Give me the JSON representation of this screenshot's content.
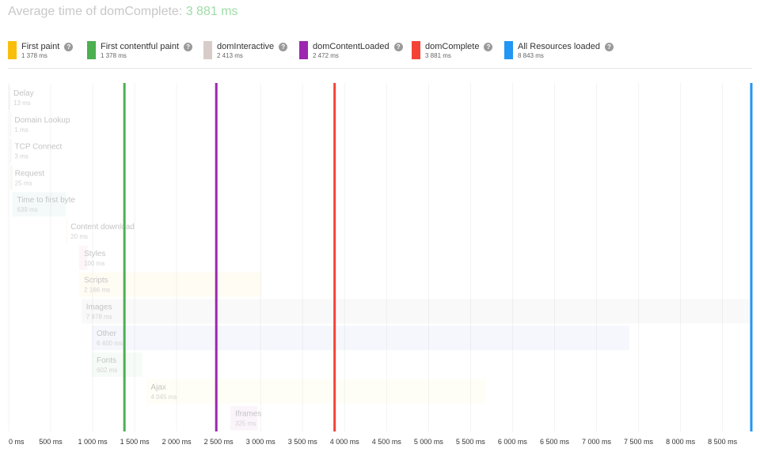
{
  "title": {
    "prefix": "Average time of domComplete: ",
    "value": "3 881 ms"
  },
  "legend": [
    {
      "name": "First paint",
      "value": "1 378 ms",
      "color": "#f9be0b",
      "ms": 1378
    },
    {
      "name": "First contentful paint",
      "value": "1 378 ms",
      "color": "#4caf50",
      "ms": 1378
    },
    {
      "name": "domInteractive",
      "value": "2 413 ms",
      "color": "#d7ccc8",
      "ms": 2413
    },
    {
      "name": "domContentLoaded",
      "value": "2 472 ms",
      "color": "#9c27b0",
      "ms": 2472
    },
    {
      "name": "domComplete",
      "value": "3 881 ms",
      "color": "#f44336",
      "ms": 3881
    },
    {
      "name": "All Resources loaded",
      "value": "8 843 ms",
      "color": "#2196f3",
      "ms": 8843
    }
  ],
  "chart_data": {
    "type": "bar",
    "orientation": "horizontal-waterfall",
    "x_unit": "ms",
    "xlim": [
      0,
      8843
    ],
    "x_ticks": [
      0,
      500,
      1000,
      1500,
      2000,
      2500,
      3000,
      3500,
      4000,
      4500,
      5000,
      5500,
      6000,
      6500,
      7000,
      7500,
      8000,
      8500
    ],
    "x_tick_labels": [
      "0 ms",
      "500 ms",
      "1 000 ms",
      "1 500 ms",
      "2 000 ms",
      "2 500 ms",
      "3 000 ms",
      "3 500 ms",
      "4 000 ms",
      "4 500 ms",
      "5 000 ms",
      "5 500 ms",
      "6 000 ms",
      "6 500 ms",
      "7 000 ms",
      "7 500 ms",
      "8 000 ms",
      "8 500 ms"
    ],
    "rows": [
      {
        "name": "Delay",
        "start": 0,
        "duration": 13,
        "label": "13 ms",
        "color": "#9e9e9e"
      },
      {
        "name": "Domain Lookup",
        "start": 13,
        "duration": 1,
        "label": "1 ms",
        "color": "#9e9e9e"
      },
      {
        "name": "TCP Connect",
        "start": 14,
        "duration": 3,
        "label": "3 ms",
        "color": "#9e9e9e"
      },
      {
        "name": "Request",
        "start": 17,
        "duration": 25,
        "label": "25 ms",
        "color": "#8bc34a"
      },
      {
        "name": "Time to first byte",
        "start": 42,
        "duration": 639,
        "label": "639 ms",
        "color": "#80cbc4"
      },
      {
        "name": "Content download",
        "start": 681,
        "duration": 20,
        "label": "20 ms",
        "color": "#ffcc80"
      },
      {
        "name": "Styles",
        "start": 840,
        "duration": 100,
        "label": "100 ms",
        "color": "#f48fb1"
      },
      {
        "name": "Scripts",
        "start": 840,
        "duration": 2166,
        "label": "2 166 ms",
        "color": "#ffe082"
      },
      {
        "name": "Images",
        "start": 865,
        "duration": 7978,
        "label": "7 978 ms",
        "color": "#bdbdbd"
      },
      {
        "name": "Other",
        "start": 990,
        "duration": 6400,
        "label": "6 400 ms",
        "color": "#9fa8da"
      },
      {
        "name": "Fonts",
        "start": 990,
        "duration": 602,
        "label": "602 ms",
        "color": "#a5d6a7"
      },
      {
        "name": "Ajax",
        "start": 1635,
        "duration": 4045,
        "label": "4 045 ms",
        "color": "#fff59d"
      },
      {
        "name": "Iframes",
        "start": 2640,
        "duration": 325,
        "label": "325 ms",
        "color": "#ce93d8"
      }
    ],
    "markers": [
      {
        "name": "First contentful paint",
        "ms": 1378,
        "color": "#4caf50"
      },
      {
        "name": "domContentLoaded",
        "ms": 2472,
        "color": "#9c27b0"
      },
      {
        "name": "domComplete",
        "ms": 3881,
        "color": "#f44336"
      },
      {
        "name": "All Resources loaded",
        "ms": 8843,
        "color": "#2196f3"
      }
    ]
  }
}
